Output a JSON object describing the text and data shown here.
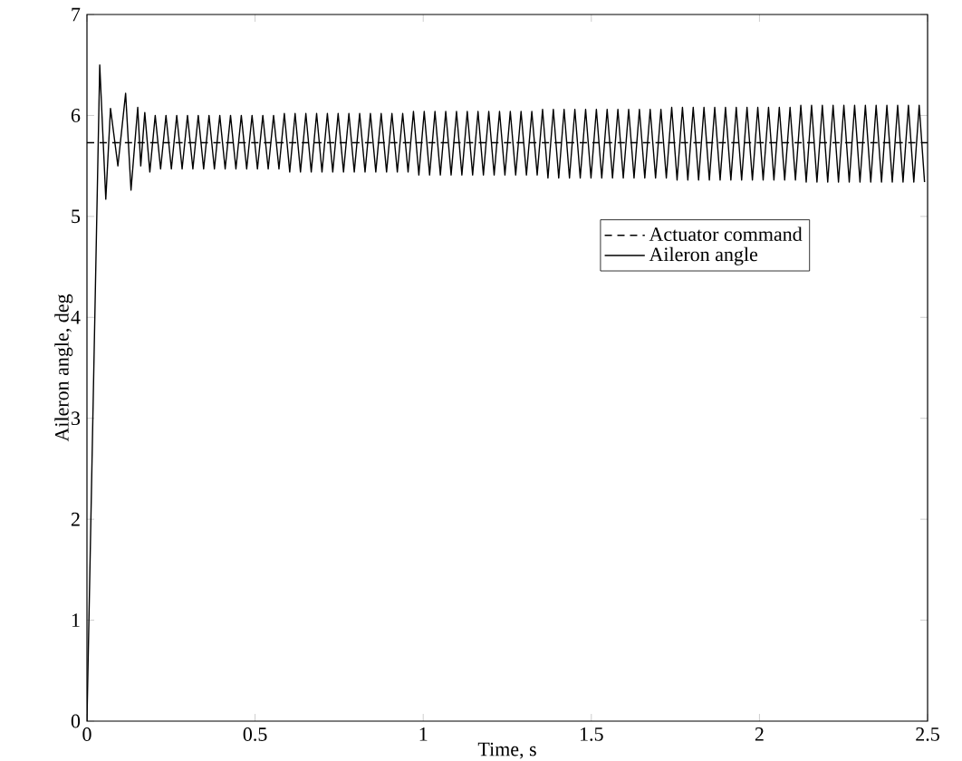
{
  "chart_data": {
    "type": "line",
    "xlabel": "Time, s",
    "ylabel": "Aileron angle, deg",
    "xlim": [
      0,
      2.5
    ],
    "ylim": [
      0,
      7
    ],
    "xticks": [
      0,
      0.5,
      1,
      1.5,
      2,
      2.5
    ],
    "yticks": [
      0,
      1,
      2,
      3,
      4,
      5,
      6,
      7
    ],
    "grid": false,
    "legend": "right",
    "marker": "none",
    "series": [
      {
        "name": "Actuator command",
        "color": "#000000",
        "line_style": "dashed",
        "x": [
          0,
          2.5
        ],
        "values": [
          5.73,
          5.73
        ]
      },
      {
        "name": "Aileron angle",
        "color": "#000000",
        "line_style": "solid",
        "x": [
          0,
          0.038,
          0.056,
          0.07,
          0.092,
          0.115,
          0.131,
          0.151,
          0.16,
          0.172,
          0.187,
          0.203,
          0.219,
          0.235,
          0.251,
          0.267,
          0.283,
          0.299,
          0.315,
          0.331,
          0.347,
          0.363,
          0.379,
          0.395,
          0.411,
          0.427,
          0.443,
          0.459,
          0.475,
          0.491,
          0.507,
          0.523,
          0.539,
          0.555,
          0.571,
          0.587,
          0.603,
          0.619,
          0.635,
          0.651,
          0.667,
          0.683,
          0.699,
          0.715,
          0.731,
          0.747,
          0.763,
          0.779,
          0.795,
          0.811,
          0.827,
          0.843,
          0.859,
          0.875,
          0.891,
          0.907,
          0.923,
          0.939,
          0.955,
          0.971,
          0.987,
          1.003,
          1.019,
          1.035,
          1.051,
          1.067,
          1.083,
          1.099,
          1.115,
          1.131,
          1.147,
          1.163,
          1.179,
          1.195,
          1.211,
          1.227,
          1.243,
          1.259,
          1.275,
          1.291,
          1.307,
          1.323,
          1.339,
          1.355,
          1.371,
          1.387,
          1.403,
          1.419,
          1.435,
          1.451,
          1.467,
          1.483,
          1.499,
          1.515,
          1.531,
          1.547,
          1.563,
          1.579,
          1.595,
          1.611,
          1.627,
          1.643,
          1.659,
          1.675,
          1.691,
          1.707,
          1.723,
          1.739,
          1.755,
          1.771,
          1.787,
          1.803,
          1.819,
          1.835,
          1.851,
          1.867,
          1.883,
          1.899,
          1.915,
          1.931,
          1.947,
          1.963,
          1.979,
          1.995,
          2.011,
          2.027,
          2.043,
          2.059,
          2.075,
          2.091,
          2.107,
          2.123,
          2.139,
          2.155,
          2.171,
          2.187,
          2.203,
          2.219,
          2.235,
          2.251,
          2.267,
          2.283,
          2.299,
          2.315,
          2.331,
          2.347,
          2.363,
          2.379,
          2.395,
          2.411,
          2.427,
          2.443,
          2.459,
          2.475,
          2.491
        ],
        "values": [
          0,
          6.5,
          5.17,
          6.07,
          5.5,
          6.22,
          5.26,
          6.08,
          5.5,
          6.03,
          5.44,
          6.0,
          5.47,
          6.0,
          5.47,
          6.0,
          5.47,
          6.0,
          5.47,
          6.0,
          5.47,
          6.0,
          5.47,
          6.0,
          5.47,
          6.0,
          5.47,
          6.0,
          5.47,
          6.0,
          5.47,
          6.0,
          5.47,
          6.0,
          5.47,
          6.02,
          5.44,
          6.02,
          5.44,
          6.02,
          5.44,
          6.02,
          5.44,
          6.02,
          5.44,
          6.02,
          5.44,
          6.02,
          5.44,
          6.02,
          5.44,
          6.02,
          5.44,
          6.02,
          5.44,
          6.02,
          5.44,
          6.02,
          5.44,
          6.04,
          5.41,
          6.04,
          5.41,
          6.04,
          5.41,
          6.04,
          5.41,
          6.04,
          5.41,
          6.04,
          5.41,
          6.04,
          5.41,
          6.04,
          5.41,
          6.04,
          5.41,
          6.04,
          5.41,
          6.04,
          5.41,
          6.04,
          5.41,
          6.06,
          5.38,
          6.06,
          5.38,
          6.06,
          5.38,
          6.06,
          5.38,
          6.06,
          5.38,
          6.06,
          5.38,
          6.06,
          5.38,
          6.06,
          5.38,
          6.06,
          5.38,
          6.06,
          5.38,
          6.06,
          5.38,
          6.06,
          5.38,
          6.08,
          5.36,
          6.08,
          5.36,
          6.08,
          5.36,
          6.08,
          5.36,
          6.08,
          5.36,
          6.08,
          5.36,
          6.08,
          5.36,
          6.08,
          5.36,
          6.08,
          5.36,
          6.08,
          5.36,
          6.08,
          5.36,
          6.08,
          5.36,
          6.1,
          5.34,
          6.1,
          5.34,
          6.1,
          5.34,
          6.1,
          5.34,
          6.1,
          5.34,
          6.1,
          5.34,
          6.1,
          5.34,
          6.1,
          5.34,
          6.1,
          5.34,
          6.1,
          5.34,
          6.1,
          5.34,
          6.1,
          5.34
        ]
      }
    ]
  }
}
